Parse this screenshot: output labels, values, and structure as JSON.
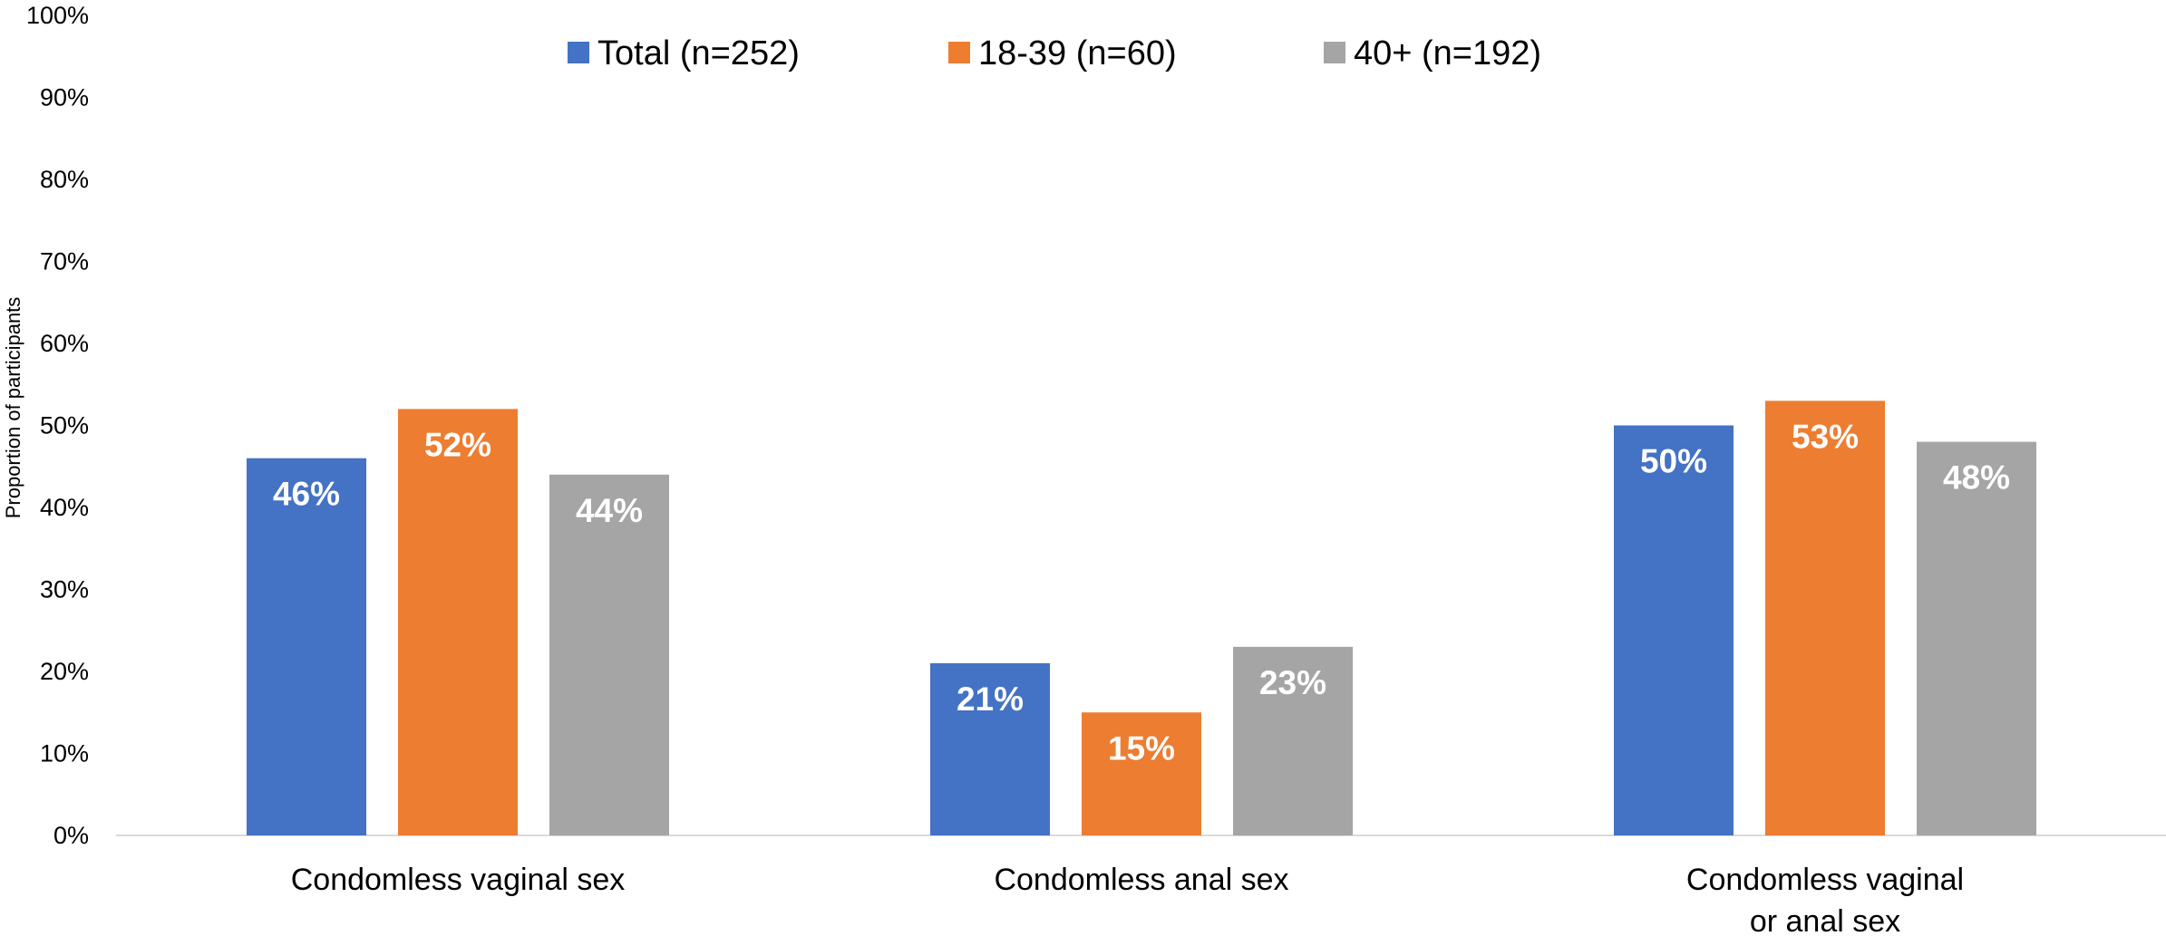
{
  "chart_data": {
    "type": "bar",
    "title": "",
    "xlabel": "",
    "ylabel": "Proportion of participants",
    "ylim": [
      0,
      100
    ],
    "yticks": [
      "0%",
      "10%",
      "20%",
      "30%",
      "40%",
      "50%",
      "60%",
      "70%",
      "80%",
      "90%",
      "100%"
    ],
    "categories": [
      [
        "Condomless vaginal sex"
      ],
      [
        "Condomless anal sex"
      ],
      [
        "Condomless vaginal",
        "or anal sex"
      ]
    ],
    "series": [
      {
        "name": "Total (n=252)",
        "color": "#4472C4",
        "values": [
          46,
          21,
          50
        ],
        "labels": [
          "46%",
          "21%",
          "50%"
        ]
      },
      {
        "name": "18-39 (n=60)",
        "color": "#ED7D31",
        "values": [
          52,
          15,
          53
        ],
        "labels": [
          "52%",
          "15%",
          "53%"
        ]
      },
      {
        "name": "40+ (n=192)",
        "color": "#A5A5A5",
        "values": [
          44,
          23,
          48
        ],
        "labels": [
          "44%",
          "23%",
          "48%"
        ]
      }
    ],
    "grid": false,
    "legend_position": "top-center",
    "axis_color": "#D9D9D9"
  }
}
